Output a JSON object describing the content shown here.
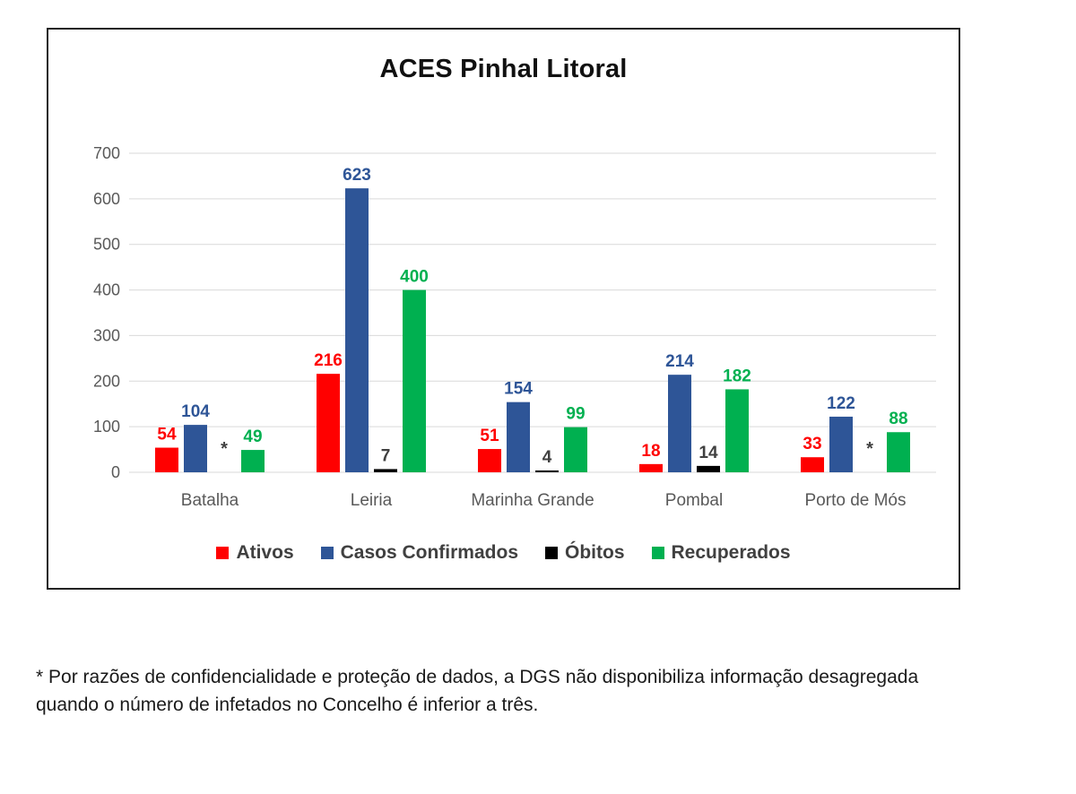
{
  "chart_data": {
    "type": "bar",
    "title": "ACES Pinhal Litoral",
    "categories": [
      "Batalha",
      "Leiria",
      "Marinha Grande",
      "Pombal",
      "Porto de Mós"
    ],
    "ylim": [
      0,
      700
    ],
    "yticks": [
      0,
      100,
      200,
      300,
      400,
      500,
      600,
      700
    ],
    "grid": true,
    "legend_position": "bottom",
    "series": [
      {
        "name": "Ativos",
        "color": "#ff0000",
        "values": [
          54,
          216,
          51,
          18,
          33
        ],
        "labels": [
          "54",
          "216",
          "51",
          "18",
          "33"
        ]
      },
      {
        "name": "Casos Confirmados",
        "color": "#2e5597",
        "values": [
          104,
          623,
          154,
          214,
          122
        ],
        "labels": [
          "104",
          "623",
          "154",
          "214",
          "122"
        ]
      },
      {
        "name": "Óbitos",
        "color": "#000000",
        "values": [
          null,
          7,
          4,
          14,
          null
        ],
        "labels": [
          "*",
          "7",
          "4",
          "14",
          "*"
        ]
      },
      {
        "name": "Recuperados",
        "color": "#00b050",
        "values": [
          49,
          400,
          99,
          182,
          88
        ],
        "labels": [
          "49",
          "400",
          "99",
          "182",
          "88"
        ]
      }
    ]
  },
  "footnote": "* Por razões de confidencialidade e proteção de dados, a DGS não disponibiliza informação desagregada quando o número de infetados no Concelho é inferior a três."
}
